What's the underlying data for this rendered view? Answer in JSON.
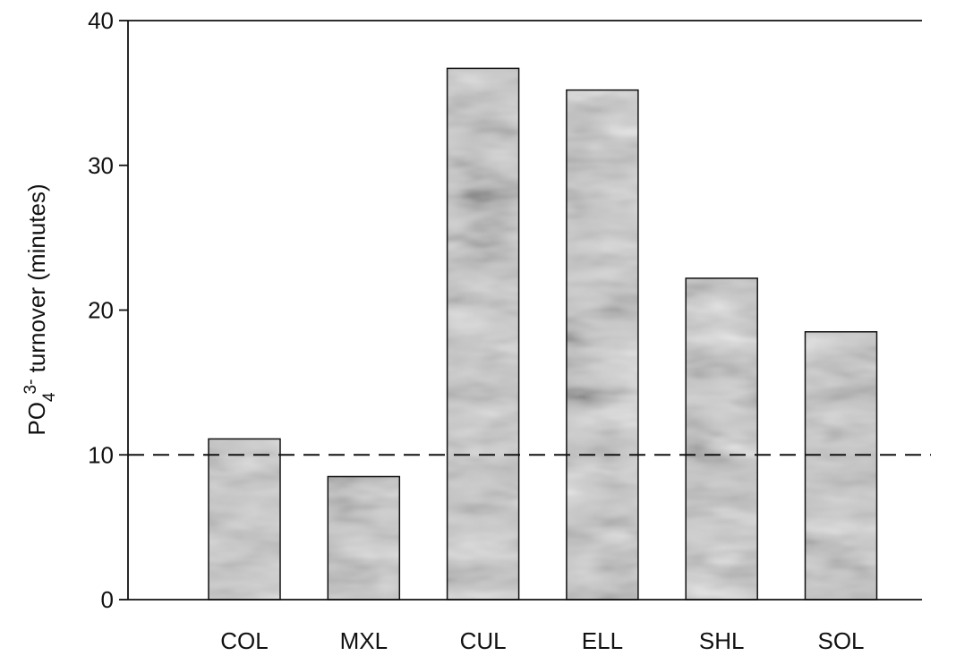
{
  "chart_data": {
    "type": "bar",
    "title": "",
    "xlabel": "",
    "ylabel": {
      "prefix": "PO",
      "subscript": "4",
      "superscript": "3-",
      "suffix": " turnover (minutes)"
    },
    "categories": [
      "COL",
      "MXL",
      "CUL",
      "ELL",
      "SHL",
      "SOL"
    ],
    "values": [
      11.1,
      8.5,
      36.7,
      35.2,
      22.2,
      18.5
    ],
    "ylim": [
      0,
      40
    ],
    "yticks": [
      "0",
      "10",
      "20",
      "30",
      "40"
    ],
    "reference_line": {
      "y": 10,
      "style": "dashed"
    },
    "bar_fill": "textured gray",
    "colors": {
      "bar_light": "#c8c8c8",
      "bar_dark": "#6e6e6e",
      "axis": "#111111"
    },
    "grid": false,
    "legend": "none"
  }
}
